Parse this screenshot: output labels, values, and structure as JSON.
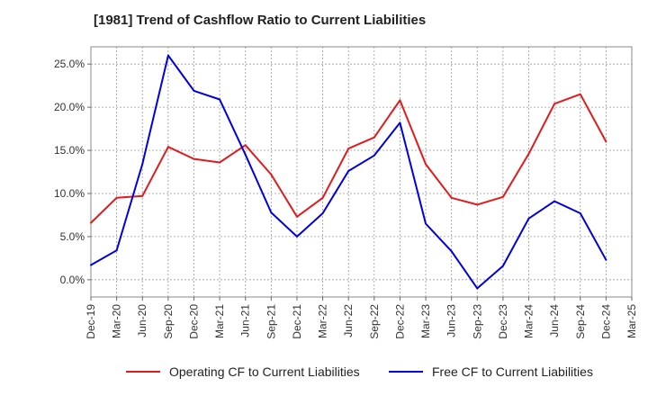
{
  "chart_data": {
    "type": "line",
    "title": "[1981]  Trend of Cashflow Ratio to Current Liabilities",
    "xlabel": "",
    "ylabel": "",
    "x": [
      "Dec-19",
      "Mar-20",
      "Jun-20",
      "Sep-20",
      "Dec-20",
      "Mar-21",
      "Jun-21",
      "Sep-21",
      "Dec-21",
      "Mar-22",
      "Jun-22",
      "Sep-22",
      "Dec-22",
      "Mar-23",
      "Jun-23",
      "Sep-23",
      "Dec-23",
      "Mar-24",
      "Jun-24",
      "Sep-24",
      "Dec-24",
      "Mar-25"
    ],
    "y_ticks": [
      "0.0%",
      "5.0%",
      "10.0%",
      "15.0%",
      "20.0%",
      "25.0%"
    ],
    "y_tick_values": [
      0,
      5,
      10,
      15,
      20,
      25
    ],
    "ylim": [
      -2,
      27
    ],
    "grid": true,
    "legend_position": "bottom",
    "series": [
      {
        "name": "Operating CF to Current Liabilities",
        "color": "#e31a1c",
        "values": [
          6.6,
          9.5,
          9.7,
          15.4,
          14.0,
          13.6,
          15.6,
          12.2,
          7.3,
          9.5,
          15.2,
          16.5,
          20.8,
          13.4,
          9.5,
          8.7,
          9.6,
          14.6,
          20.4,
          21.5,
          16.0,
          null
        ]
      },
      {
        "name": "Free CF to Current Liabilities",
        "color": "#0000e0",
        "values": [
          1.7,
          3.4,
          13.4,
          26.0,
          21.9,
          20.9,
          14.5,
          7.8,
          5.0,
          7.7,
          12.6,
          14.4,
          18.2,
          6.5,
          3.3,
          -1.0,
          1.6,
          7.1,
          9.1,
          7.7,
          2.3,
          null
        ]
      }
    ]
  }
}
